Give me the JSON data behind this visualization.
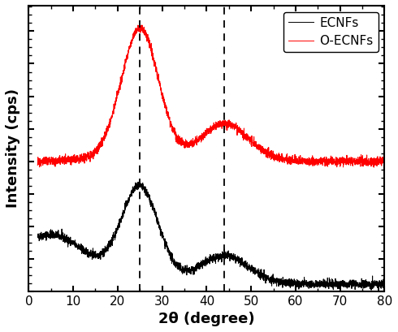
{
  "title": "",
  "xlabel": "2θ (degree)",
  "ylabel": "Intensity (cps)",
  "xlim": [
    0,
    80
  ],
  "dashed_lines": [
    25,
    44
  ],
  "legend_labels": [
    "ECNFs",
    "O-ECNFs"
  ],
  "legend_colors": [
    "black",
    "red"
  ],
  "xticks": [
    0,
    10,
    20,
    30,
    40,
    50,
    60,
    70,
    80
  ],
  "noise_amplitude": 0.013,
  "figsize": [
    4.9,
    4.09
  ],
  "dpi": 100
}
